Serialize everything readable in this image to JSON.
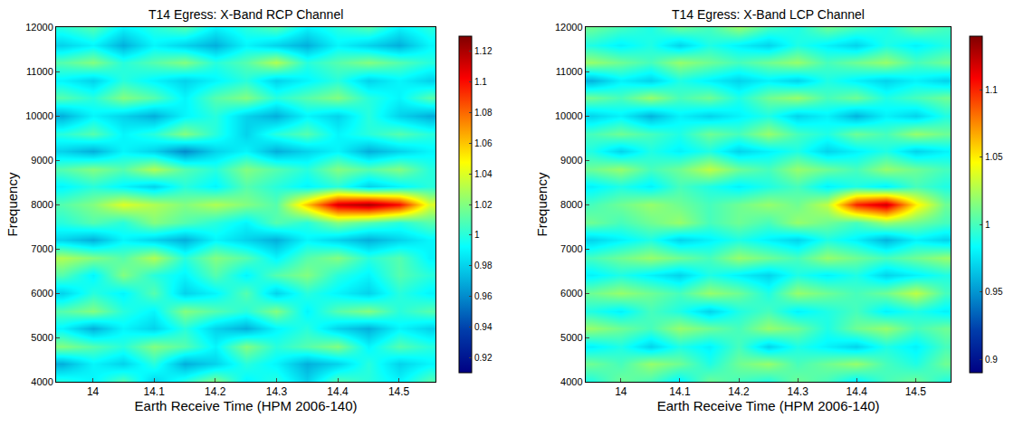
{
  "chart_data": [
    {
      "type": "heatmap",
      "title": "T14 Egress: X-Band RCP Channel",
      "x_label": "Earth Receive Time (HPM 2006-140)",
      "y_label": "Frequency",
      "x": [
        13.95,
        14.0,
        14.05,
        14.1,
        14.15,
        14.2,
        14.25,
        14.3,
        14.35,
        14.4,
        14.45,
        14.5,
        14.55
      ],
      "y": [
        4000,
        4400,
        4800,
        5200,
        5600,
        6000,
        6400,
        6800,
        7200,
        7600,
        8000,
        8400,
        8800,
        9200,
        9600,
        10000,
        10400,
        10800,
        11200,
        11600,
        12000
      ],
      "z": [
        [
          1.0,
          0.99,
          1.01,
          0.98,
          1.0,
          1.02,
          0.99,
          1.0,
          0.98,
          1.01,
          1.0,
          0.99,
          1.01
        ],
        [
          0.97,
          0.99,
          0.98,
          1.0,
          0.97,
          0.98,
          1.0,
          0.99,
          0.97,
          0.98,
          1.0,
          0.98,
          0.99
        ],
        [
          1.02,
          1.01,
          1.0,
          1.02,
          1.01,
          0.99,
          1.02,
          1.0,
          1.01,
          1.02,
          0.99,
          1.01,
          1.0
        ],
        [
          0.99,
          0.97,
          0.99,
          0.98,
          1.0,
          0.98,
          0.97,
          0.99,
          1.0,
          0.98,
          0.97,
          0.99,
          0.98
        ],
        [
          1.01,
          1.02,
          1.0,
          0.99,
          1.02,
          1.01,
          1.0,
          1.02,
          0.99,
          1.01,
          1.02,
          1.0,
          1.01
        ],
        [
          0.98,
          1.0,
          0.99,
          1.01,
          0.98,
          0.99,
          1.01,
          0.98,
          1.0,
          0.99,
          0.98,
          1.0,
          0.99
        ],
        [
          1.01,
          0.99,
          1.02,
          1.0,
          0.99,
          1.01,
          0.99,
          1.01,
          1.02,
          1.0,
          0.99,
          1.01,
          1.0
        ],
        [
          1.03,
          1.02,
          1.01,
          1.03,
          1.0,
          1.02,
          1.01,
          0.99,
          1.01,
          1.02,
          1.0,
          1.01,
          0.99
        ],
        [
          0.98,
          0.97,
          0.99,
          0.98,
          0.97,
          0.99,
          0.98,
          0.97,
          0.99,
          0.98,
          0.97,
          0.98,
          0.99
        ],
        [
          1.0,
          1.01,
          1.0,
          1.02,
          1.01,
          1.0,
          0.99,
          1.01,
          1.0,
          1.02,
          1.01,
          1.0,
          1.01
        ],
        [
          1.01,
          1.02,
          1.04,
          1.03,
          1.02,
          1.03,
          1.02,
          1.01,
          1.06,
          1.11,
          1.12,
          1.1,
          1.04
        ],
        [
          0.99,
          1.0,
          0.99,
          0.98,
          1.0,
          0.99,
          1.01,
          1.0,
          0.99,
          1.0,
          0.98,
          0.99,
          1.0
        ],
        [
          1.01,
          1.02,
          1.01,
          1.03,
          1.01,
          1.0,
          1.02,
          1.01,
          1.0,
          1.02,
          1.01,
          1.02,
          1.0
        ],
        [
          0.98,
          0.97,
          0.99,
          0.98,
          0.96,
          0.98,
          0.99,
          0.97,
          0.98,
          0.99,
          0.97,
          0.98,
          0.99
        ],
        [
          1.0,
          1.01,
          0.99,
          1.0,
          1.02,
          1.0,
          0.98,
          1.0,
          1.01,
          0.99,
          1.0,
          1.01,
          1.0
        ],
        [
          0.97,
          0.99,
          0.98,
          0.97,
          0.99,
          1.0,
          0.98,
          0.97,
          0.99,
          0.98,
          1.0,
          0.98,
          0.97
        ],
        [
          1.01,
          1.0,
          1.02,
          1.01,
          0.99,
          1.01,
          1.02,
          1.0,
          1.01,
          1.02,
          1.0,
          0.99,
          1.01
        ],
        [
          0.99,
          0.98,
          1.0,
          0.99,
          0.98,
          0.99,
          1.0,
          0.98,
          0.99,
          1.0,
          0.98,
          0.99,
          0.98
        ],
        [
          1.01,
          1.02,
          1.0,
          1.01,
          1.02,
          1.0,
          1.01,
          1.03,
          1.0,
          1.01,
          1.02,
          1.01,
          1.0
        ],
        [
          0.98,
          0.99,
          0.97,
          0.99,
          0.98,
          0.97,
          0.99,
          0.98,
          0.97,
          0.99,
          0.98,
          0.97,
          0.99
        ],
        [
          1.0,
          1.01,
          0.99,
          1.0,
          1.01,
          0.99,
          1.0,
          1.01,
          0.99,
          1.0,
          1.01,
          0.99,
          1.0
        ]
      ],
      "xlim": [
        13.94,
        14.56
      ],
      "xticks": [
        14,
        14.1,
        14.2,
        14.3,
        14.4,
        14.5
      ],
      "ylim": [
        4000,
        12000
      ],
      "yticks": [
        4000,
        5000,
        6000,
        7000,
        8000,
        9000,
        10000,
        11000,
        12000
      ],
      "zlim": [
        0.91,
        1.13
      ],
      "zticks": [
        0.92,
        0.94,
        0.96,
        0.98,
        1,
        1.02,
        1.04,
        1.06,
        1.08,
        1.1,
        1.12
      ]
    },
    {
      "type": "heatmap",
      "title": "T14 Egress: X-Band LCP Channel",
      "x_label": "Earth Receive Time (HPM 2006-140)",
      "y_label": "Frequency",
      "x": [
        13.95,
        14.0,
        14.05,
        14.1,
        14.15,
        14.2,
        14.25,
        14.3,
        14.35,
        14.4,
        14.45,
        14.5,
        14.55
      ],
      "y": [
        4000,
        4400,
        4800,
        5200,
        5600,
        6000,
        6400,
        6800,
        7200,
        7600,
        8000,
        8400,
        8800,
        9200,
        9600,
        10000,
        10400,
        10800,
        11200,
        11600,
        12000
      ],
      "z": [
        [
          0.99,
          1.01,
          1.0,
          0.98,
          1.01,
          1.0,
          0.99,
          1.01,
          1.0,
          0.98,
          1.0,
          1.01,
          0.99
        ],
        [
          1.01,
          1.0,
          1.02,
          1.01,
          0.99,
          1.01,
          1.02,
          1.0,
          1.01,
          1.02,
          1.0,
          0.99,
          1.01
        ],
        [
          0.98,
          0.99,
          0.97,
          0.99,
          0.98,
          1.0,
          0.97,
          0.99,
          0.98,
          0.97,
          0.99,
          0.98,
          1.0
        ],
        [
          1.02,
          1.01,
          1.0,
          1.02,
          1.01,
          1.0,
          1.02,
          1.01,
          0.99,
          1.01,
          1.02,
          1.0,
          1.01
        ],
        [
          0.99,
          0.98,
          1.0,
          0.99,
          0.97,
          0.99,
          1.0,
          0.98,
          0.99,
          1.0,
          0.98,
          0.99,
          0.98
        ],
        [
          1.01,
          1.02,
          1.01,
          1.0,
          1.02,
          1.01,
          0.99,
          1.02,
          1.01,
          1.0,
          1.01,
          1.03,
          1.0
        ],
        [
          0.98,
          0.99,
          0.98,
          0.97,
          0.99,
          0.98,
          0.97,
          0.99,
          0.98,
          0.99,
          0.97,
          0.98,
          0.99
        ],
        [
          1.0,
          1.01,
          1.02,
          1.01,
          1.0,
          1.02,
          1.01,
          1.0,
          1.02,
          1.01,
          1.0,
          1.01,
          1.02
        ],
        [
          0.97,
          0.98,
          0.99,
          0.97,
          0.98,
          0.99,
          0.98,
          0.97,
          0.99,
          0.98,
          0.96,
          0.98,
          0.97
        ],
        [
          1.01,
          1.0,
          1.01,
          1.02,
          1.0,
          1.01,
          1.0,
          1.02,
          1.01,
          1.0,
          1.02,
          1.01,
          1.0
        ],
        [
          1.0,
          1.01,
          1.02,
          1.01,
          1.0,
          1.01,
          1.02,
          1.01,
          1.03,
          1.1,
          1.12,
          1.05,
          1.01
        ],
        [
          0.98,
          0.99,
          0.98,
          1.0,
          0.99,
          0.98,
          0.99,
          1.0,
          0.98,
          0.99,
          0.98,
          1.0,
          0.99
        ],
        [
          1.01,
          1.02,
          1.0,
          1.01,
          1.03,
          1.01,
          1.0,
          1.02,
          1.01,
          1.0,
          1.02,
          1.01,
          1.0
        ],
        [
          0.99,
          0.97,
          0.99,
          0.98,
          0.99,
          0.97,
          0.98,
          0.99,
          0.97,
          0.98,
          0.99,
          0.97,
          0.98
        ],
        [
          1.0,
          1.01,
          1.0,
          0.99,
          1.01,
          1.0,
          1.02,
          1.0,
          0.99,
          1.01,
          1.0,
          1.02,
          1.01
        ],
        [
          0.97,
          0.98,
          0.96,
          0.98,
          0.97,
          0.98,
          0.99,
          0.97,
          0.98,
          0.96,
          0.98,
          0.97,
          0.99
        ],
        [
          1.01,
          1.0,
          1.02,
          1.0,
          1.01,
          0.99,
          1.01,
          1.02,
          1.0,
          1.01,
          0.99,
          1.0,
          1.01
        ],
        [
          0.96,
          0.98,
          0.97,
          0.99,
          0.98,
          0.97,
          0.98,
          0.97,
          0.99,
          0.98,
          0.97,
          0.98,
          0.97
        ],
        [
          1.02,
          1.01,
          1.0,
          1.02,
          1.01,
          1.0,
          1.01,
          1.02,
          1.0,
          1.01,
          1.02,
          1.0,
          1.01
        ],
        [
          0.99,
          0.98,
          0.99,
          0.97,
          0.99,
          0.98,
          0.97,
          0.99,
          0.98,
          0.97,
          0.99,
          0.98,
          0.99
        ],
        [
          1.01,
          1.0,
          0.99,
          1.01,
          1.0,
          1.02,
          1.0,
          0.99,
          1.01,
          1.0,
          0.99,
          1.01,
          1.0
        ]
      ],
      "xlim": [
        13.94,
        14.56
      ],
      "xticks": [
        14,
        14.1,
        14.2,
        14.3,
        14.4,
        14.5
      ],
      "ylim": [
        4000,
        12000
      ],
      "yticks": [
        4000,
        5000,
        6000,
        7000,
        8000,
        9000,
        10000,
        11000,
        12000
      ],
      "zlim": [
        0.89,
        1.14
      ],
      "zticks": [
        0.9,
        0.95,
        1,
        1.05,
        1.1
      ]
    }
  ]
}
